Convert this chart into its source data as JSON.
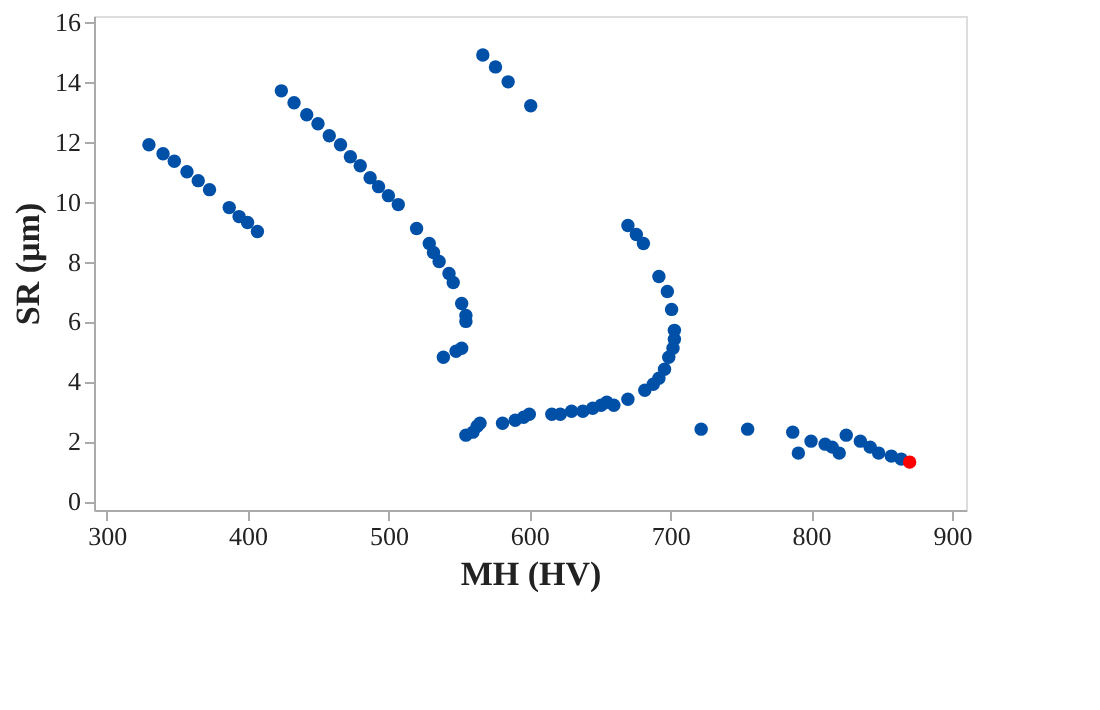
{
  "chart_data": {
    "type": "scatter",
    "xlabel": "MH (HV)",
    "ylabel": "SR (µm)",
    "xlim": [
      291,
      910
    ],
    "ylim": [
      -0.3,
      16.2
    ],
    "xticks": [
      300,
      400,
      500,
      600,
      700,
      800,
      900
    ],
    "yticks": [
      0,
      2,
      4,
      6,
      8,
      10,
      12,
      14,
      16
    ],
    "grid": false,
    "legend": false,
    "marker": "circle",
    "series": [
      {
        "color": "#0050a8",
        "x": [
          330,
          340,
          348,
          357,
          365,
          373,
          387,
          394,
          400,
          407,
          424,
          433,
          442,
          450,
          458,
          466,
          473,
          480,
          487,
          493,
          500,
          507,
          520,
          529,
          532,
          536,
          543,
          546,
          552,
          555,
          555,
          539,
          548,
          552,
          567,
          576,
          585,
          601,
          555,
          560,
          563,
          565,
          581,
          590,
          596,
          600,
          616,
          622,
          630,
          638,
          645,
          651,
          655,
          660,
          670,
          682,
          688,
          692,
          696,
          699,
          702,
          703,
          703,
          701,
          698,
          692,
          681,
          676,
          670,
          722,
          755,
          787,
          791,
          800,
          810,
          815,
          820,
          825,
          835,
          842,
          848,
          857,
          864
        ],
        "values": [
          11.9,
          11.6,
          11.35,
          11.0,
          10.7,
          10.4,
          9.8,
          9.5,
          9.3,
          9.0,
          13.7,
          13.3,
          12.9,
          12.6,
          12.2,
          11.9,
          11.5,
          11.2,
          10.8,
          10.5,
          10.2,
          9.9,
          9.1,
          8.6,
          8.3,
          8.0,
          7.6,
          7.3,
          6.6,
          6.2,
          6.0,
          4.8,
          5.0,
          5.1,
          14.9,
          14.5,
          14.0,
          13.2,
          2.2,
          2.3,
          2.5,
          2.6,
          2.6,
          2.7,
          2.8,
          2.9,
          2.9,
          2.9,
          3.0,
          3.0,
          3.1,
          3.2,
          3.3,
          3.2,
          3.4,
          3.7,
          3.9,
          4.1,
          4.4,
          4.8,
          5.1,
          5.4,
          5.7,
          6.4,
          7.0,
          7.5,
          8.6,
          8.9,
          9.2,
          2.4,
          2.4,
          2.3,
          1.6,
          2.0,
          1.9,
          1.8,
          1.6,
          2.2,
          2.0,
          1.8,
          1.6,
          1.5,
          1.4
        ]
      },
      {
        "color": "#ff0000",
        "x": [
          870
        ],
        "values": [
          1.3
        ]
      }
    ]
  }
}
